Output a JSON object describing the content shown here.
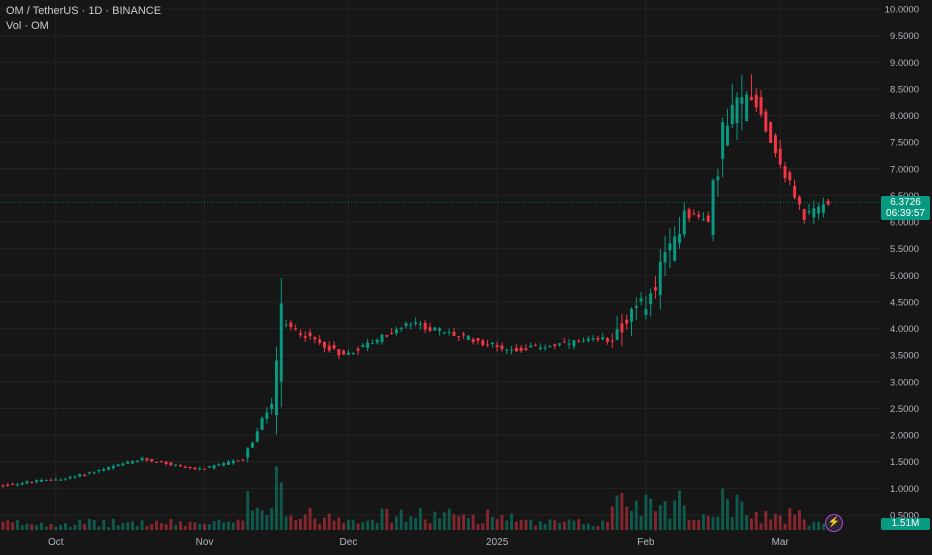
{
  "legend": {
    "symbol_line": "OM / TetherUS · 1D · BINANCE",
    "volume_line": "Vol · OM"
  },
  "price_axis": {
    "ticks": [
      "10.0000",
      "9.5000",
      "9.0000",
      "8.5000",
      "8.0000",
      "7.5000",
      "7.0000",
      "6.5000",
      "6.0000",
      "5.5000",
      "5.0000",
      "4.5000",
      "4.0000",
      "3.5000",
      "3.0000",
      "2.5000",
      "2.0000",
      "1.5000",
      "1.0000",
      "0.5000"
    ],
    "current_price": "6.3726",
    "countdown": "06:39:57",
    "volume_value": "1.51M"
  },
  "time_axis": {
    "labels": [
      "Oct",
      "Nov",
      "Dec",
      "2025",
      "Feb",
      "Mar"
    ]
  },
  "colors": {
    "up": "#089981",
    "down": "#f23645",
    "background": "#161616",
    "grid": "#232323"
  },
  "controls": {
    "flash_icon": "lightning-icon"
  },
  "chart_data": {
    "type": "candlestick",
    "interval": "1D",
    "exchange": "BINANCE",
    "pair": "OM / TetherUS",
    "ylim": [
      0.5,
      10.0
    ],
    "x_start": "2024-09-20",
    "x_end": "2025-03-12",
    "current_price": 6.3726,
    "segments": [
      {
        "from": "2024-09-20",
        "to": "2024-10-05",
        "start": 1.05,
        "end": 1.2,
        "vol": "low"
      },
      {
        "from": "2024-10-05",
        "to": "2024-10-20",
        "start": 1.2,
        "end": 1.55,
        "vol": "low"
      },
      {
        "from": "2024-10-20",
        "to": "2024-11-01",
        "start": 1.55,
        "end": 1.35,
        "vol": "low"
      },
      {
        "from": "2024-11-01",
        "to": "2024-11-10",
        "start": 1.35,
        "end": 1.55,
        "vol": "low"
      },
      {
        "from": "2024-11-10",
        "to": "2024-11-16",
        "start": 1.55,
        "end": 2.6,
        "vol": "high"
      },
      {
        "from": "2024-11-16",
        "to": "2024-11-18",
        "start": 2.6,
        "end": 4.1,
        "vol": "peak"
      },
      {
        "from": "2024-11-18",
        "to": "2024-12-01",
        "start": 4.1,
        "end": 3.5,
        "vol": "mid"
      },
      {
        "from": "2024-12-01",
        "to": "2024-12-15",
        "start": 3.5,
        "end": 4.1,
        "vol": "mid"
      },
      {
        "from": "2024-12-15",
        "to": "2025-01-05",
        "start": 4.1,
        "end": 3.6,
        "vol": "mid"
      },
      {
        "from": "2025-01-05",
        "to": "2025-01-25",
        "start": 3.6,
        "end": 3.8,
        "vol": "low"
      },
      {
        "from": "2025-01-25",
        "to": "2025-02-03",
        "start": 3.8,
        "end": 4.6,
        "vol": "high"
      },
      {
        "from": "2025-02-03",
        "to": "2025-02-10",
        "start": 4.6,
        "end": 6.2,
        "vol": "high"
      },
      {
        "from": "2025-02-10",
        "to": "2025-02-15",
        "start": 6.2,
        "end": 6.0,
        "vol": "mid"
      },
      {
        "from": "2025-02-15",
        "to": "2025-02-18",
        "start": 6.0,
        "end": 7.7,
        "vol": "high"
      },
      {
        "from": "2025-02-18",
        "to": "2025-02-24",
        "start": 7.7,
        "end": 8.5,
        "vol": "high"
      },
      {
        "from": "2025-02-24",
        "to": "2025-03-01",
        "start": 8.5,
        "end": 7.3,
        "vol": "mid"
      },
      {
        "from": "2025-03-01",
        "to": "2025-03-07",
        "start": 7.3,
        "end": 6.1,
        "vol": "mid"
      },
      {
        "from": "2025-03-07",
        "to": "2025-03-12",
        "start": 6.1,
        "end": 6.37,
        "vol": "low"
      }
    ]
  }
}
